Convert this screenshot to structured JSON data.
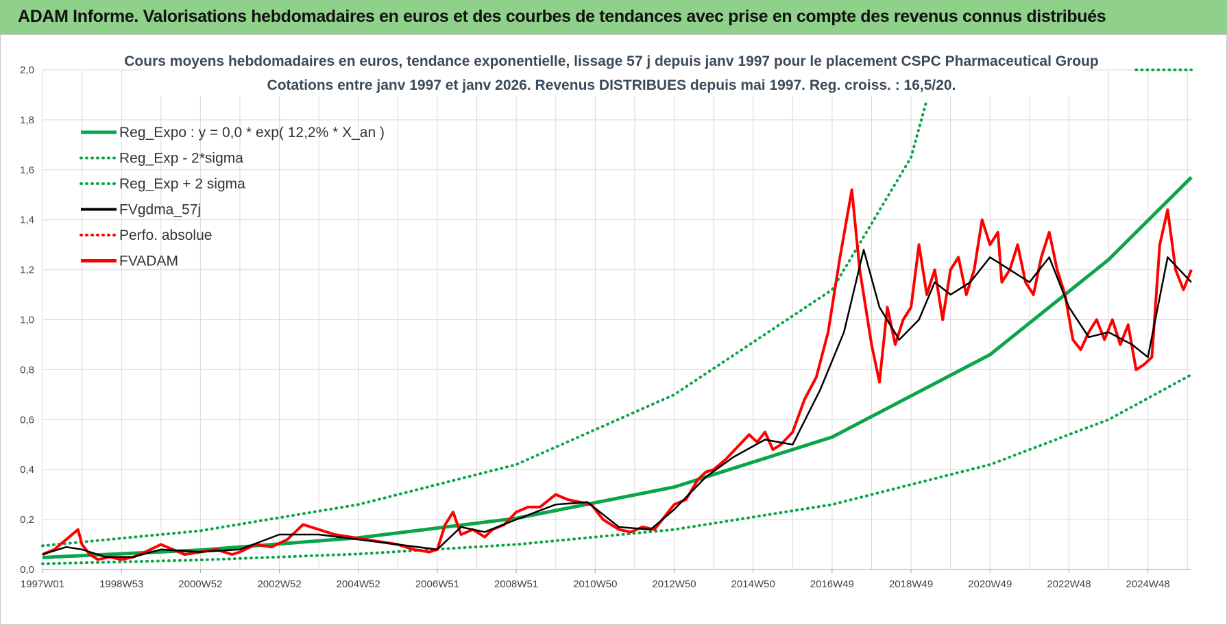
{
  "header": {
    "title": "ADAM Informe. Valorisations hebdomadaires en euros et des courbes de tendances avec prise en compte des revenus connus distribués"
  },
  "colors": {
    "banner": "#8fd18a",
    "reg_green": "#0aa54a",
    "fv_red": "#ff0000",
    "fv_black": "#000000",
    "grid": "#d9d9d9"
  },
  "chart_data": {
    "type": "line",
    "title": "Cours moyens hebdomadaires en euros, tendance exponentielle, lissage 57 j depuis janv 1997 pour le placement CSPC Pharmaceutical Group",
    "subtitle": "Cotations entre janv 1997 et janv 2026. Revenus DISTRIBUES depuis mai 1997. Reg. croiss. : 16,5/20.",
    "xlabel": "",
    "ylabel": "",
    "xlim": [
      1997.0,
      2026.1
    ],
    "ylim": [
      0,
      2.0
    ],
    "grid": true,
    "legend_position": "top-left",
    "x_ticks": [
      {
        "label": "1997W01",
        "x": 1997.0
      },
      {
        "label": "1998W53",
        "x": 1999.0
      },
      {
        "label": "2000W52",
        "x": 2001.0
      },
      {
        "label": "2002W52",
        "x": 2003.0
      },
      {
        "label": "2004W52",
        "x": 2005.0
      },
      {
        "label": "2006W51",
        "x": 2007.0
      },
      {
        "label": "2008W51",
        "x": 2009.0
      },
      {
        "label": "2010W50",
        "x": 2011.0
      },
      {
        "label": "2012W50",
        "x": 2013.0
      },
      {
        "label": "2014W50",
        "x": 2015.0
      },
      {
        "label": "2016W49",
        "x": 2017.0
      },
      {
        "label": "2018W49",
        "x": 2019.0
      },
      {
        "label": "2020W49",
        "x": 2021.0
      },
      {
        "label": "2022W48",
        "x": 2023.0
      },
      {
        "label": "2024W48",
        "x": 2025.0
      }
    ],
    "y_ticks": [
      "0,0",
      "0,2",
      "0,4",
      "0,6",
      "0,8",
      "1,0",
      "1,2",
      "1,4",
      "1,6",
      "1,8",
      "2,0"
    ],
    "y_tick_values": [
      0,
      0.2,
      0.4,
      0.6,
      0.8,
      1.0,
      1.2,
      1.4,
      1.6,
      1.8,
      2.0
    ],
    "legend": [
      {
        "key": "reg",
        "label": "Reg_Expo : y = 0,0 * exp( 12,2% *  X_an )",
        "color": "#0aa54a",
        "style": "solid-thick"
      },
      {
        "key": "minus",
        "label": "Reg_Exp - 2*sigma",
        "color": "#0aa54a",
        "style": "dotted"
      },
      {
        "key": "plus",
        "label": "Reg_Exp + 2 sigma",
        "color": "#0aa54a",
        "style": "dotted"
      },
      {
        "key": "gdma",
        "label": "FVgdma_57j",
        "color": "#000000",
        "style": "solid"
      },
      {
        "key": "perf",
        "label": "Perfo. absolue",
        "color": "#ff0000",
        "style": "dotted"
      },
      {
        "key": "fv",
        "label": "FVADAM",
        "color": "#ff0000",
        "style": "solid-thick"
      }
    ],
    "regression": {
      "name": "Reg_Expo",
      "x": [
        1997.0,
        2001.0,
        2005.0,
        2009.0,
        2013.0,
        2017.0,
        2021.0,
        2024.0,
        2026.1
      ],
      "values": [
        0.048,
        0.078,
        0.127,
        0.205,
        0.33,
        0.53,
        0.86,
        1.24,
        1.57
      ]
    },
    "band_minus": {
      "name": "Reg_Exp - 2*sigma",
      "x": [
        1997.0,
        2001.0,
        2005.0,
        2009.0,
        2013.0,
        2017.0,
        2021.0,
        2024.0,
        2026.1
      ],
      "values": [
        0.023,
        0.038,
        0.062,
        0.1,
        0.16,
        0.26,
        0.42,
        0.6,
        0.78
      ]
    },
    "band_plus": {
      "name": "Reg_Exp + 2 sigma",
      "x": [
        1997.0,
        2001.0,
        2005.0,
        2009.0,
        2013.0,
        2017.0,
        2019.0,
        2019.4
      ],
      "values": [
        0.095,
        0.155,
        0.26,
        0.42,
        0.7,
        1.12,
        1.65,
        1.88
      ],
      "flat_segment": {
        "x": [
          2024.7,
          2026.1
        ],
        "y": 2.0
      }
    },
    "fvadam": {
      "name": "FVADAM",
      "x": [
        1997.0,
        1997.3,
        1997.6,
        1997.9,
        1998.0,
        1998.2,
        1998.4,
        1998.7,
        1999.0,
        1999.3,
        1999.6,
        2000.0,
        2000.3,
        2000.6,
        2001.0,
        2001.4,
        2001.8,
        2002.0,
        2002.4,
        2002.8,
        2003.2,
        2003.6,
        2004.0,
        2004.4,
        2004.8,
        2005.2,
        2005.6,
        2006.0,
        2006.4,
        2006.8,
        2007.0,
        2007.2,
        2007.4,
        2007.6,
        2007.9,
        2008.2,
        2008.4,
        2008.7,
        2009.0,
        2009.3,
        2009.6,
        2010.0,
        2010.3,
        2010.6,
        2010.9,
        2011.2,
        2011.6,
        2011.9,
        2012.2,
        2012.5,
        2012.8,
        2013.0,
        2013.3,
        2013.6,
        2013.8,
        2014.0,
        2014.3,
        2014.6,
        2014.9,
        2015.1,
        2015.3,
        2015.5,
        2015.7,
        2016.0,
        2016.3,
        2016.6,
        2016.9,
        2017.2,
        2017.5,
        2017.7,
        2018.0,
        2018.2,
        2018.4,
        2018.6,
        2018.8,
        2019.0,
        2019.2,
        2019.4,
        2019.6,
        2019.8,
        2020.0,
        2020.2,
        2020.4,
        2020.6,
        2020.8,
        2021.0,
        2021.2,
        2021.3,
        2021.5,
        2021.7,
        2021.9,
        2022.1,
        2022.3,
        2022.5,
        2022.7,
        2022.9,
        2023.1,
        2023.3,
        2023.5,
        2023.7,
        2023.9,
        2024.1,
        2024.3,
        2024.5,
        2024.7,
        2024.9,
        2025.1,
        2025.3,
        2025.5,
        2025.7,
        2025.9,
        2026.1
      ],
      "values": [
        0.06,
        0.08,
        0.12,
        0.16,
        0.1,
        0.06,
        0.04,
        0.05,
        0.04,
        0.05,
        0.07,
        0.1,
        0.08,
        0.06,
        0.07,
        0.08,
        0.06,
        0.07,
        0.1,
        0.09,
        0.12,
        0.18,
        0.16,
        0.14,
        0.13,
        0.12,
        0.11,
        0.1,
        0.08,
        0.07,
        0.08,
        0.18,
        0.23,
        0.14,
        0.16,
        0.13,
        0.16,
        0.18,
        0.23,
        0.25,
        0.25,
        0.3,
        0.28,
        0.27,
        0.26,
        0.2,
        0.16,
        0.15,
        0.17,
        0.16,
        0.22,
        0.26,
        0.28,
        0.36,
        0.39,
        0.4,
        0.44,
        0.49,
        0.54,
        0.51,
        0.55,
        0.48,
        0.5,
        0.55,
        0.68,
        0.77,
        0.95,
        1.25,
        1.52,
        1.2,
        0.9,
        0.75,
        1.05,
        0.9,
        1.0,
        1.05,
        1.3,
        1.1,
        1.2,
        1.0,
        1.2,
        1.25,
        1.1,
        1.2,
        1.4,
        1.3,
        1.35,
        1.15,
        1.2,
        1.3,
        1.15,
        1.1,
        1.25,
        1.35,
        1.2,
        1.1,
        0.92,
        0.88,
        0.95,
        1.0,
        0.92,
        1.0,
        0.9,
        0.98,
        0.8,
        0.82,
        0.85,
        1.3,
        1.44,
        1.2,
        1.12,
        1.2
      ]
    },
    "fvgdma_57j": {
      "name": "FVgdma_57j",
      "x": [
        1997.0,
        1997.6,
        1998.0,
        1998.6,
        1999.3,
        2000.0,
        2001.0,
        2002.0,
        2003.0,
        2004.0,
        2005.0,
        2006.0,
        2007.0,
        2007.6,
        2008.2,
        2009.0,
        2010.0,
        2010.8,
        2011.6,
        2012.4,
        2013.0,
        2013.8,
        2014.5,
        2015.3,
        2016.0,
        2016.7,
        2017.3,
        2017.8,
        2018.2,
        2018.7,
        2019.2,
        2019.6,
        2020.0,
        2020.5,
        2021.0,
        2021.5,
        2022.0,
        2022.5,
        2023.0,
        2023.5,
        2024.0,
        2024.6,
        2025.0,
        2025.5,
        2026.1
      ],
      "values": [
        0.06,
        0.09,
        0.08,
        0.05,
        0.05,
        0.08,
        0.07,
        0.08,
        0.14,
        0.14,
        0.12,
        0.1,
        0.08,
        0.17,
        0.15,
        0.2,
        0.26,
        0.27,
        0.17,
        0.16,
        0.24,
        0.37,
        0.45,
        0.52,
        0.5,
        0.72,
        0.95,
        1.28,
        1.05,
        0.92,
        1.0,
        1.15,
        1.1,
        1.15,
        1.25,
        1.2,
        1.15,
        1.25,
        1.05,
        0.93,
        0.95,
        0.9,
        0.85,
        1.25,
        1.15
      ]
    }
  }
}
